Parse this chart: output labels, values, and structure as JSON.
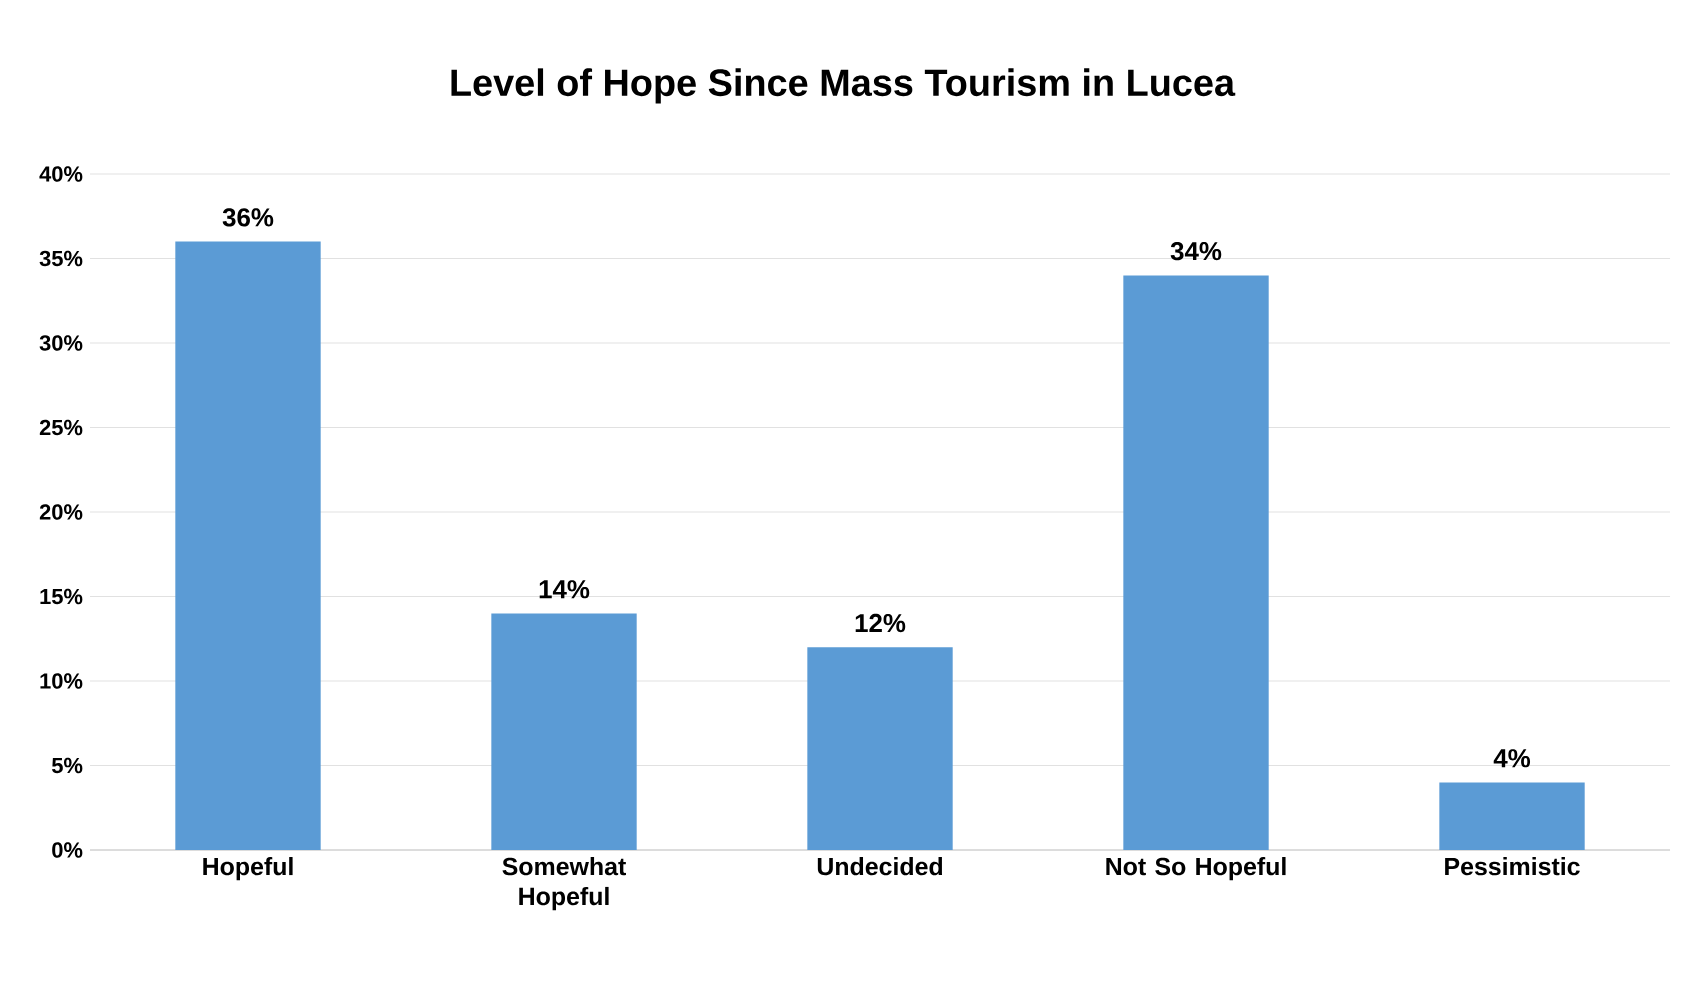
{
  "chart_data": {
    "type": "bar",
    "title": "Level of Hope Since Mass Tourism in Lucea",
    "categories": [
      "Hopeful",
      "Somewhat Hopeful",
      "Undecided",
      "Not So Hopeful",
      "Pessimistic"
    ],
    "values": [
      36,
      14,
      12,
      34,
      4
    ],
    "value_labels": [
      "36%",
      "14%",
      "12%",
      "34%",
      "4%"
    ],
    "color": "#5b9bd5",
    "ylim": [
      0,
      40
    ],
    "yticks": [
      {
        "value": 0,
        "label": "0%"
      },
      {
        "value": 5,
        "label": "5%"
      },
      {
        "value": 10,
        "label": "10%"
      },
      {
        "value": 15,
        "label": "15%"
      },
      {
        "value": 20,
        "label": "20%"
      },
      {
        "value": 25,
        "label": "25%"
      },
      {
        "value": 30,
        "label": "30%"
      },
      {
        "value": 35,
        "label": "35%"
      },
      {
        "value": 40,
        "label": "40%"
      }
    ],
    "grid": "y"
  }
}
